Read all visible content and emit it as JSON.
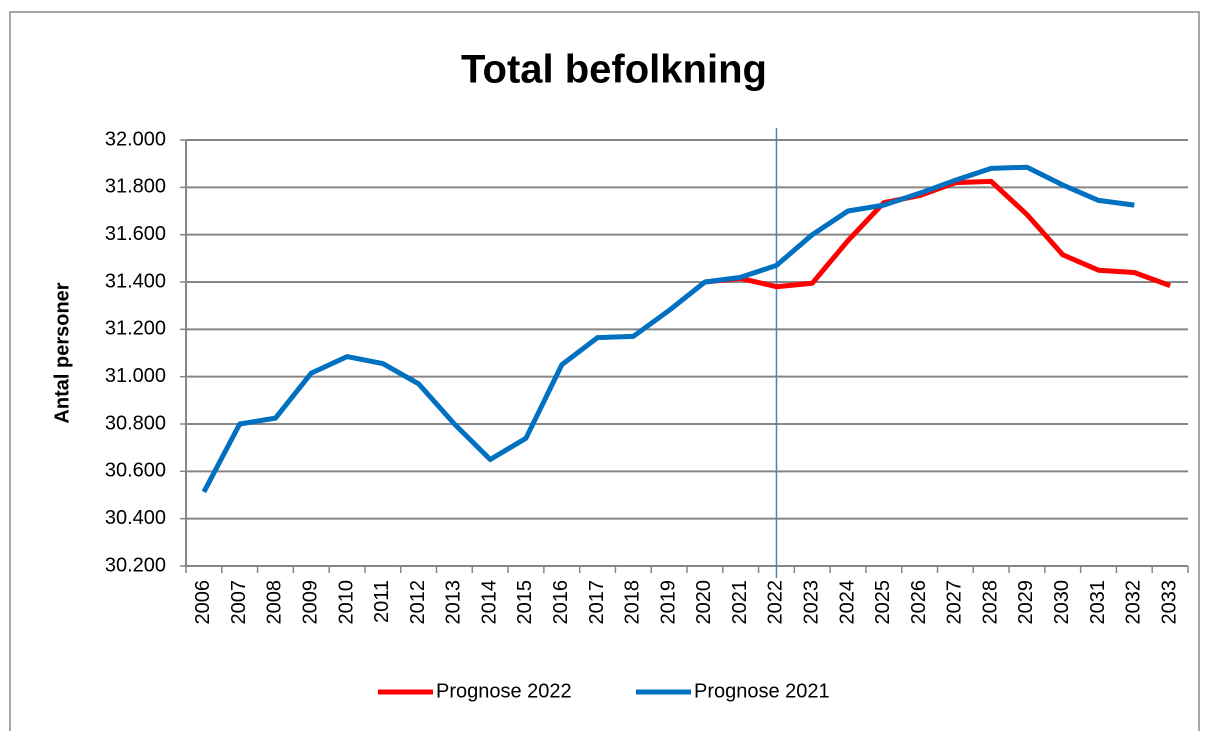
{
  "chart_data": {
    "type": "line",
    "title": "Total befolkning",
    "y_label": "Antal personer",
    "categories": [
      "2006",
      "2007",
      "2008",
      "2009",
      "2010",
      "2011",
      "2012",
      "2013",
      "2014",
      "2015",
      "2016",
      "2017",
      "2018",
      "2019",
      "2020",
      "2021",
      "2022",
      "2023",
      "2024",
      "2025",
      "2026",
      "2027",
      "2028",
      "2029",
      "2030",
      "2031",
      "2032",
      "2033"
    ],
    "series": [
      {
        "name": "Prognose 2022",
        "color": "#ff0000",
        "values": [
          null,
          null,
          null,
          null,
          null,
          null,
          null,
          null,
          null,
          null,
          null,
          null,
          null,
          null,
          31400,
          31415,
          31380,
          31395,
          31575,
          31735,
          31765,
          31820,
          31825,
          31685,
          31515,
          31450,
          31440,
          31385
        ]
      },
      {
        "name": "Prognose 2021",
        "color": "#0070c0",
        "values": [
          30513,
          30800,
          30825,
          31015,
          31085,
          31055,
          30970,
          30800,
          30650,
          30740,
          31050,
          31165,
          31170,
          31280,
          31400,
          31420,
          31470,
          31600,
          31700,
          31725,
          31775,
          31830,
          31880,
          31885,
          31810,
          31745,
          31725,
          null
        ]
      }
    ],
    "ylim": [
      30200,
      32000
    ],
    "yticks": [
      {
        "value": 30200,
        "label": "30.200"
      },
      {
        "value": 30400,
        "label": "30.400"
      },
      {
        "value": 30600,
        "label": "30.600"
      },
      {
        "value": 30800,
        "label": "30.800"
      },
      {
        "value": 31000,
        "label": "31.000"
      },
      {
        "value": 31200,
        "label": "31.200"
      },
      {
        "value": 31400,
        "label": "31.400"
      },
      {
        "value": 31600,
        "label": "31.600"
      },
      {
        "value": 31800,
        "label": "31.800"
      },
      {
        "value": 32000,
        "label": "32.000"
      }
    ],
    "grid": true,
    "marker_category": "2022",
    "legend": "bottom"
  }
}
